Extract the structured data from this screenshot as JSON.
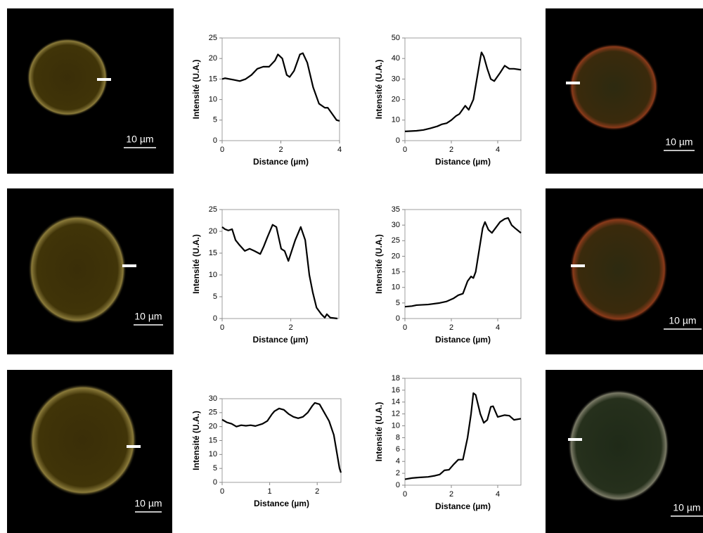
{
  "images": [
    {
      "scale_label": "10 µm"
    },
    {
      "scale_label": "10 µm"
    },
    {
      "scale_label": "10 µm"
    },
    {
      "scale_label": "10 µm"
    },
    {
      "scale_label": "10 µm"
    },
    {
      "scale_label": "10 µm"
    }
  ],
  "chart_data": [
    {
      "type": "line",
      "xlabel": "Distance (µm)",
      "ylabel": "Intensité (U.A.)",
      "color": "#000000",
      "x": [
        0,
        0.1,
        0.4,
        0.6,
        0.8,
        1,
        1.2,
        1.4,
        1.6,
        1.8,
        1.9,
        2.05,
        2.2,
        2.3,
        2.45,
        2.65,
        2.75,
        2.9,
        3.1,
        3.3,
        3.5,
        3.6,
        3.75,
        3.9,
        4
      ],
      "values": [
        15,
        15.2,
        14.8,
        14.5,
        15,
        16,
        17.5,
        18,
        18,
        19.5,
        21,
        20,
        16,
        15.5,
        17,
        21,
        21.3,
        19,
        13,
        9,
        8,
        8,
        6.5,
        5,
        4.8
      ],
      "xlim": [
        0,
        4
      ],
      "xticks": [
        0,
        2,
        4
      ],
      "ylim": [
        0,
        25
      ],
      "yticks": [
        0,
        5,
        10,
        15,
        20,
        25
      ]
    },
    {
      "type": "line",
      "xlabel": "Distance (µm)",
      "ylabel": "Intensité (U.A.)",
      "color": "#000000",
      "x": [
        0,
        0.5,
        0.8,
        1.1,
        1.4,
        1.6,
        1.8,
        2,
        2.2,
        2.35,
        2.6,
        2.75,
        2.95,
        3.1,
        3.25,
        3.3,
        3.4,
        3.55,
        3.7,
        3.85,
        4.1,
        4.3,
        4.5,
        4.7,
        5
      ],
      "values": [
        4.5,
        4.8,
        5.2,
        6,
        7,
        8,
        8.5,
        10,
        12,
        13,
        17,
        15,
        20,
        30,
        40,
        43,
        41,
        35,
        30,
        29,
        33,
        36.5,
        35,
        35,
        34.5
      ],
      "xlim": [
        0,
        5
      ],
      "xticks": [
        0,
        2,
        4
      ],
      "ylim": [
        0,
        50
      ],
      "yticks": [
        0,
        10,
        20,
        30,
        40,
        50
      ]
    },
    {
      "type": "line",
      "xlabel": "Distance (µm)",
      "ylabel": "Intensité (U.A.)",
      "color": "#000000",
      "x": [
        0,
        0.08,
        0.18,
        0.29,
        0.39,
        0.49,
        0.66,
        0.8,
        0.94,
        1.11,
        1.21,
        1.31,
        1.47,
        1.58,
        1.72,
        1.82,
        1.93,
        2.13,
        2.29,
        2.42,
        2.54,
        2.64,
        2.75,
        2.89,
        2.99,
        3.05,
        3.15,
        3.36
      ],
      "values": [
        21,
        20.5,
        20.2,
        20.5,
        18,
        17,
        15.5,
        16,
        15.5,
        14.8,
        16.5,
        18.5,
        21.5,
        21,
        16,
        15.5,
        13.2,
        18,
        21,
        18,
        10,
        6,
        2.5,
        1,
        0.2,
        1,
        0.2,
        0
      ],
      "xlim": [
        0,
        3.4
      ],
      "xticks": [
        0,
        2
      ],
      "ylim": [
        0,
        25
      ],
      "yticks": [
        0,
        5,
        10,
        15,
        20,
        25
      ]
    },
    {
      "type": "line",
      "xlabel": "Distance (µm)",
      "ylabel": "Intensité (U.A.)",
      "color": "#000000",
      "x": [
        0,
        0.3,
        0.5,
        1,
        1.5,
        1.8,
        2.1,
        2.3,
        2.5,
        2.7,
        2.85,
        2.95,
        3.05,
        3.2,
        3.35,
        3.45,
        3.6,
        3.75,
        3.9,
        4.1,
        4.3,
        4.45,
        4.6,
        4.75,
        5
      ],
      "values": [
        3.8,
        4,
        4.3,
        4.5,
        5,
        5.5,
        6.5,
        7.5,
        8,
        12,
        13.5,
        13,
        15,
        22,
        29,
        31,
        28.5,
        27.5,
        29,
        31,
        32,
        32.3,
        30,
        29,
        27.5
      ],
      "xlim": [
        0,
        5
      ],
      "xticks": [
        0,
        2,
        4
      ],
      "ylim": [
        0,
        35
      ],
      "yticks": [
        0,
        5,
        10,
        15,
        20,
        25,
        30,
        35
      ]
    },
    {
      "type": "line",
      "xlabel": "Distance (µm)",
      "ylabel": "Intensité (U.A.)",
      "color": "#000000",
      "x": [
        0,
        0.1,
        0.2,
        0.3,
        0.4,
        0.5,
        0.6,
        0.7,
        0.85,
        0.95,
        1.05,
        1.1,
        1.2,
        1.3,
        1.4,
        1.5,
        1.6,
        1.7,
        1.8,
        1.9,
        1.95,
        2.05,
        2.15,
        2.25,
        2.35,
        2.42,
        2.47,
        2.5
      ],
      "values": [
        22.5,
        21.5,
        21,
        20,
        20.5,
        20.3,
        20.5,
        20.2,
        21,
        22,
        24.5,
        25.5,
        26.5,
        26,
        24.5,
        23.5,
        23,
        23.5,
        25,
        27.5,
        28.5,
        28,
        25,
        22,
        17,
        10,
        5,
        3.5
      ],
      "xlim": [
        0,
        2.5
      ],
      "xticks": [
        0,
        1,
        2
      ],
      "ylim": [
        0,
        30
      ],
      "yticks": [
        0,
        5,
        10,
        15,
        20,
        25,
        30
      ]
    },
    {
      "type": "line",
      "xlabel": "Distance (µm)",
      "ylabel": "Intensité (U.A.)",
      "color": "#000000",
      "x": [
        0,
        0.3,
        0.6,
        1,
        1.3,
        1.5,
        1.7,
        1.9,
        2.1,
        2.3,
        2.5,
        2.7,
        2.85,
        2.95,
        3.05,
        3.25,
        3.4,
        3.55,
        3.7,
        3.8,
        4,
        4.3,
        4.5,
        4.7,
        5
      ],
      "values": [
        1,
        1.2,
        1.3,
        1.4,
        1.6,
        1.8,
        2.5,
        2.6,
        3.5,
        4.3,
        4.3,
        8,
        12,
        15.5,
        15.2,
        12,
        10.5,
        11,
        13.2,
        13.3,
        11.5,
        11.8,
        11.7,
        11,
        11.2
      ],
      "xlim": [
        0,
        5
      ],
      "xticks": [
        0,
        2,
        4
      ],
      "ylim": [
        0,
        18
      ],
      "yticks": [
        0,
        2,
        4,
        6,
        8,
        10,
        12,
        14,
        16,
        18
      ]
    }
  ]
}
